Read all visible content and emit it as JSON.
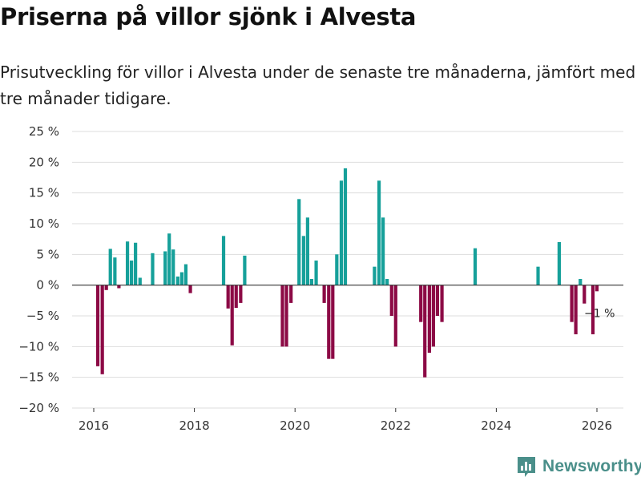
{
  "header": {
    "title": "Priserna på villor sjönk i Alvesta",
    "subtitle": "Prisutveckling för villor i Alvesta under de senaste tre månaderna, jämfört med tre månader tidigare."
  },
  "colors": {
    "positive": "#16a09a",
    "negative": "#8c0a45",
    "grid": "#dddddd",
    "zero": "#333333"
  },
  "brand": {
    "name": "Newsworthy",
    "icon": "bar-chart-icon"
  },
  "chart_data": {
    "type": "bar",
    "title": "Priserna på villor sjönk i Alvesta",
    "ylim": [
      -20,
      25
    ],
    "yticks": [
      -20,
      -15,
      -10,
      -5,
      0,
      5,
      10,
      15,
      20,
      25
    ],
    "ytick_labels": [
      "−20 %",
      "−15 %",
      "−10 %",
      "−5 %",
      "0 %",
      "5 %",
      "10 %",
      "15 %",
      "20 %",
      "25 %"
    ],
    "xlim": [
      2015.6,
      2026.5
    ],
    "xticks": [
      2016,
      2018,
      2020,
      2022,
      2024,
      2026
    ],
    "xtick_labels": [
      "2016",
      "2018",
      "2020",
      "2022",
      "2024",
      "2026"
    ],
    "series": [
      {
        "name": "Prisutveckling",
        "points": [
          {
            "x": 2016.08,
            "y": -13.2
          },
          {
            "x": 2016.17,
            "y": -14.5
          },
          {
            "x": 2016.25,
            "y": -0.8
          },
          {
            "x": 2016.33,
            "y": 5.9
          },
          {
            "x": 2016.42,
            "y": 4.5
          },
          {
            "x": 2016.5,
            "y": -0.5
          },
          {
            "x": 2016.67,
            "y": 7.1
          },
          {
            "x": 2016.75,
            "y": 4.0
          },
          {
            "x": 2016.83,
            "y": 6.9
          },
          {
            "x": 2016.92,
            "y": 1.2
          },
          {
            "x": 2017.17,
            "y": 5.2
          },
          {
            "x": 2017.42,
            "y": 5.5
          },
          {
            "x": 2017.5,
            "y": 8.4
          },
          {
            "x": 2017.58,
            "y": 5.8
          },
          {
            "x": 2017.67,
            "y": 1.4
          },
          {
            "x": 2017.75,
            "y": 2.1
          },
          {
            "x": 2017.83,
            "y": 3.4
          },
          {
            "x": 2017.92,
            "y": -1.3
          },
          {
            "x": 2018.58,
            "y": 8.0
          },
          {
            "x": 2018.67,
            "y": -3.8
          },
          {
            "x": 2018.75,
            "y": -9.8
          },
          {
            "x": 2018.83,
            "y": -3.7
          },
          {
            "x": 2018.92,
            "y": -2.9
          },
          {
            "x": 2019.0,
            "y": 4.8
          },
          {
            "x": 2019.75,
            "y": -10.0
          },
          {
            "x": 2019.83,
            "y": -10.0
          },
          {
            "x": 2019.92,
            "y": -2.9
          },
          {
            "x": 2020.08,
            "y": 14.0
          },
          {
            "x": 2020.17,
            "y": 8.0
          },
          {
            "x": 2020.25,
            "y": 11.0
          },
          {
            "x": 2020.33,
            "y": 1.0
          },
          {
            "x": 2020.42,
            "y": 4.0
          },
          {
            "x": 2020.58,
            "y": -2.9
          },
          {
            "x": 2020.67,
            "y": -12.0
          },
          {
            "x": 2020.75,
            "y": -12.0
          },
          {
            "x": 2020.83,
            "y": 5.0
          },
          {
            "x": 2020.92,
            "y": 17.0
          },
          {
            "x": 2021.0,
            "y": 19.0
          },
          {
            "x": 2021.58,
            "y": 3.0
          },
          {
            "x": 2021.67,
            "y": 17.0
          },
          {
            "x": 2021.75,
            "y": 11.0
          },
          {
            "x": 2021.83,
            "y": 1.0
          },
          {
            "x": 2021.92,
            "y": -5.0
          },
          {
            "x": 2022.0,
            "y": -10.0
          },
          {
            "x": 2022.5,
            "y": -6.0
          },
          {
            "x": 2022.58,
            "y": -15.0
          },
          {
            "x": 2022.67,
            "y": -11.0
          },
          {
            "x": 2022.75,
            "y": -10.0
          },
          {
            "x": 2022.83,
            "y": -5.0
          },
          {
            "x": 2022.92,
            "y": -6.0
          },
          {
            "x": 2023.58,
            "y": 6.0
          },
          {
            "x": 2024.83,
            "y": 3.0
          },
          {
            "x": 2025.25,
            "y": 7.0
          },
          {
            "x": 2025.5,
            "y": -6.0
          },
          {
            "x": 2025.58,
            "y": -8.0
          },
          {
            "x": 2025.67,
            "y": 1.0
          },
          {
            "x": 2025.75,
            "y": -3.0
          },
          {
            "x": 2025.92,
            "y": -8.0
          },
          {
            "x": 2026.0,
            "y": -1.0
          }
        ]
      }
    ],
    "annotations": [
      {
        "x": 2026.0,
        "y": -1.0,
        "text": "−1 %"
      }
    ]
  }
}
